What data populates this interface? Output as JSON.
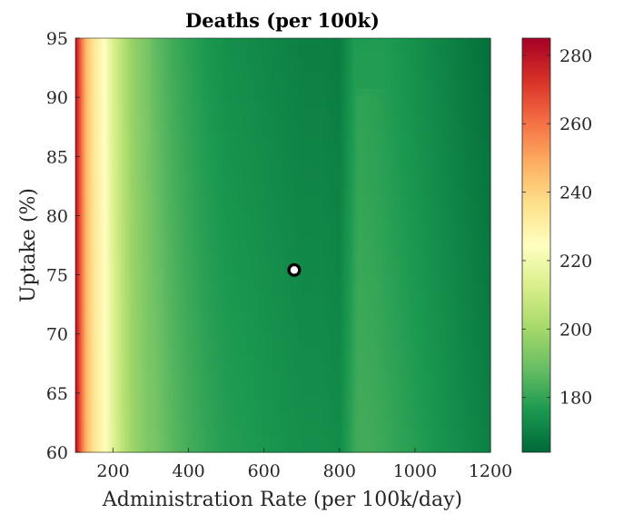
{
  "chart_data": {
    "type": "heatmap",
    "title": "Deaths (per 100k)",
    "xlabel": "Administration Rate (per 100k/day)",
    "ylabel": "Uptake (%)",
    "xlim": [
      100,
      1200
    ],
    "ylim": [
      60,
      95
    ],
    "x_ticks": [
      200,
      400,
      600,
      800,
      1000,
      1200
    ],
    "y_ticks": [
      60,
      65,
      70,
      75,
      80,
      85,
      90,
      95
    ],
    "colorbar": {
      "range": [
        164,
        285
      ],
      "ticks": [
        180,
        200,
        220,
        240,
        260,
        280
      ],
      "colormap": "RdYlGn_reversed",
      "colormap_stops": [
        "#006837",
        "#1a9850",
        "#66bd63",
        "#a6d96a",
        "#d9ef8b",
        "#ffffbf",
        "#fee08b",
        "#fdae61",
        "#f46d43",
        "#d73027",
        "#a50026"
      ]
    },
    "profile_by_admin_rate": {
      "x": [
        100,
        115,
        130,
        150,
        175,
        200,
        225,
        250,
        300,
        350,
        400,
        450,
        500,
        550,
        600,
        650,
        700,
        750,
        800,
        850,
        900,
        950,
        1000,
        1050,
        1100,
        1150,
        1200
      ],
      "deaths": [
        282,
        262,
        245,
        234,
        226,
        214,
        205,
        198,
        191,
        185,
        181,
        178,
        176,
        175,
        174,
        173,
        172,
        172,
        171,
        181,
        180,
        178,
        176,
        174,
        172,
        170,
        168
      ]
    },
    "step_boundary": {
      "uptake": [
        95,
        91,
        90,
        83,
        82,
        74,
        73,
        63,
        62,
        60
      ],
      "admin_rate": [
        790,
        795,
        815,
        820,
        838,
        843,
        858,
        863,
        878,
        880
      ]
    },
    "step_jump": 8,
    "uptake_gradient": 4,
    "marker": {
      "admin_rate": 680,
      "uptake": 75.4
    }
  }
}
